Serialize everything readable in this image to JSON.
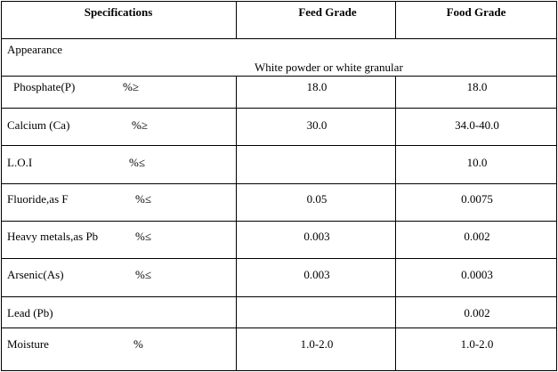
{
  "headers": {
    "specifications": "Specifications",
    "feed_grade": "Feed Grade",
    "food_grade": "Food Grade"
  },
  "rows": [
    {
      "name": "Appearance",
      "unit": "",
      "feed": "",
      "food": "",
      "merged": "White powder or white granular"
    },
    {
      "name": "Phosphate(P)",
      "unit": "%≥",
      "feed": "18.0",
      "food": "18.0"
    },
    {
      "name": "Calcium (Ca)",
      "unit": "%≥",
      "feed": "30.0",
      "food": "34.0-40.0"
    },
    {
      "name": "L.O.I",
      "unit": "%≤",
      "feed": "",
      "food": "10.0"
    },
    {
      "name": "Fluoride,as F",
      "unit": "%≤",
      "feed": "0.05",
      "food": "0.0075"
    },
    {
      "name": "Heavy metals,as Pb",
      "unit": "%≤",
      "feed": "0.003",
      "food": "0.002"
    },
    {
      "name": "Arsenic(As)",
      "unit": "%≤",
      "feed": "0.003",
      "food": "0.0003"
    },
    {
      "name": "Lead (Pb)",
      "unit": "",
      "feed": "",
      "food": "0.002"
    },
    {
      "name": "Moisture",
      "unit": "%",
      "feed": "1.0-2.0",
      "food": "1.0-2.0"
    }
  ]
}
